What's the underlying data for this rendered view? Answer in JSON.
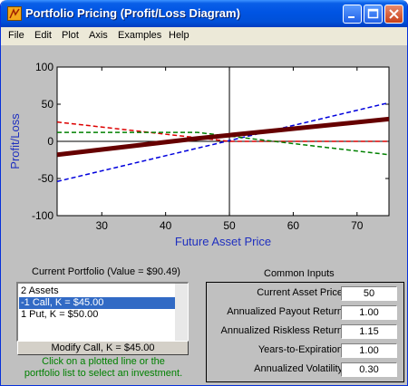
{
  "window": {
    "title": "Portfolio Pricing (Profit/Loss Diagram)"
  },
  "menu": [
    "File",
    "Edit",
    "Plot",
    "Axis",
    "Examples",
    "Help"
  ],
  "chart_data": {
    "type": "line",
    "xlabel": "Future Asset Price",
    "ylabel": "Profit/Loss",
    "xlim": [
      23,
      75
    ],
    "ylim": [
      -100,
      100
    ],
    "xticks": [
      30,
      40,
      50,
      60,
      70
    ],
    "yticks": [
      -100,
      -50,
      0,
      50,
      100
    ],
    "vline_x": 50,
    "hline_y": 0,
    "series": [
      {
        "color": "#0000dd",
        "style": "dashed",
        "width": 1.5,
        "x": [
          23,
          75
        ],
        "y": [
          -54,
          52
        ]
      },
      {
        "color": "#dd0000",
        "style": "dashed",
        "width": 1.5,
        "x": [
          23,
          50,
          75
        ],
        "y": [
          26,
          0,
          0
        ]
      },
      {
        "color": "#008000",
        "style": "dashed",
        "width": 1.5,
        "x": [
          23,
          45,
          75
        ],
        "y": [
          12,
          12,
          -18
        ]
      },
      {
        "color": "#660000",
        "style": "solid",
        "width": 5,
        "x": [
          23,
          45,
          75
        ],
        "y": [
          -18,
          4,
          30
        ]
      }
    ]
  },
  "portfolio": {
    "header": "Current Portfolio (Value = $90.49)",
    "items": [
      "2 Assets",
      "-1 Call, K = $45.00",
      "1 Put, K = $50.00"
    ],
    "selected_index": 1,
    "modify_button": "Modify Call, K = $45.00",
    "hint_line1": "Click on a plotted line or the",
    "hint_line2": "portfolio list to select an investment."
  },
  "inputs": {
    "header": "Common Inputs",
    "rows": [
      {
        "label": "Current Asset Price",
        "value": "50"
      },
      {
        "label": "Annualized Payout Return",
        "value": "1.00"
      },
      {
        "label": "Annualized Riskless Return",
        "value": "1.15"
      },
      {
        "label": "Years-to-Expiration",
        "value": "1.00"
      },
      {
        "label": "Annualized Volatility",
        "value": "0.30"
      }
    ]
  }
}
